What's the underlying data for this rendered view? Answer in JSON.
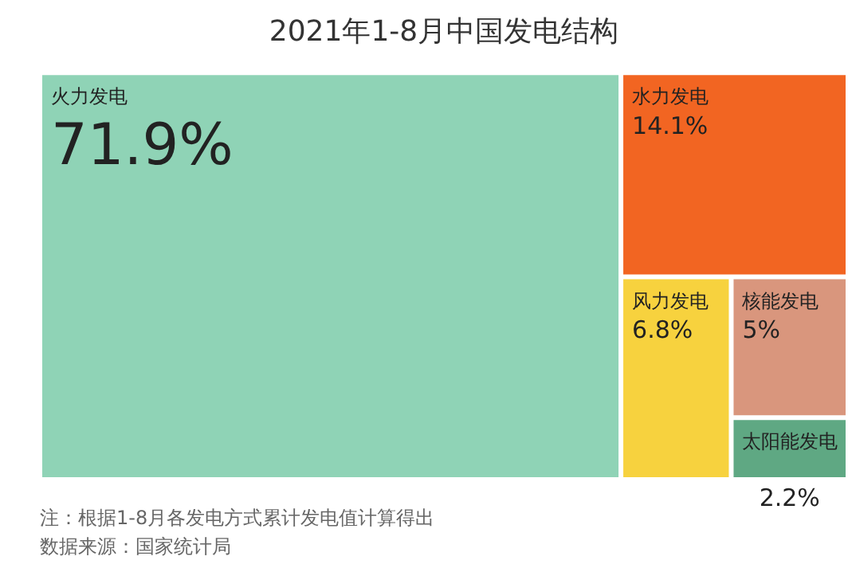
{
  "chart_data": {
    "type": "other",
    "title": "2021年1-8月中国发电结构",
    "categories": [
      "火力发电",
      "水力发电",
      "风力发电",
      "核能发电",
      "太阳能发电"
    ],
    "values": [
      71.9,
      14.1,
      6.8,
      5,
      2.2
    ],
    "value_labels": [
      "71.9%",
      "14.1%",
      "6.8%",
      "5%",
      "2.2%"
    ],
    "colors": [
      "#8fd3b6",
      "#f26522",
      "#f7d23e",
      "#d9967d",
      "#5fa883"
    ],
    "annotations": [
      "注：根据1-8月各发电方式累计发电值计算得出",
      "数据来源：国家统计局"
    ]
  }
}
